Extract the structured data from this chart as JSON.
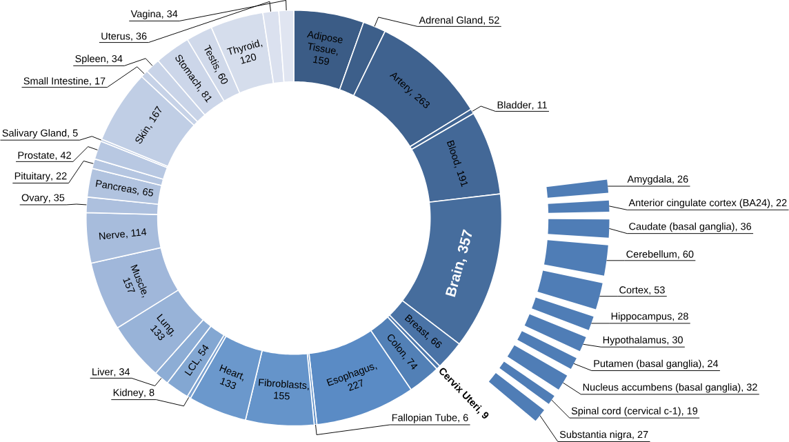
{
  "chart_data": [
    {
      "type": "donut",
      "data_labels": true,
      "categories": [
        "Adipose Tissue",
        "Adrenal Gland",
        "Artery",
        "Bladder",
        "Blood",
        "Brain",
        "Breast",
        "Cervix Uteri",
        "Colon",
        "Esophagus",
        "Fallopian Tube",
        "Fibroblasts",
        "Heart",
        "Kidney",
        "LCL",
        "Liver",
        "Lung",
        "Muscle",
        "Nerve",
        "Ovary",
        "Pancreas",
        "Pituitary",
        "Prostate",
        "Salivary Gland",
        "Skin",
        "Small Intestine",
        "Spleen",
        "Stomach",
        "Testis",
        "Thyroid",
        "Uterus",
        "Vagina"
      ],
      "values": [
        159,
        52,
        263,
        11,
        191,
        357,
        66,
        9,
        74,
        227,
        6,
        155,
        133,
        8,
        54,
        34,
        133,
        157,
        114,
        35,
        65,
        22,
        42,
        5,
        167,
        17,
        34,
        81,
        60,
        120,
        36,
        34
      ],
      "value_labels": [
        ", 159",
        ", 52",
        ", 263",
        ", 11",
        ", 191",
        ", 357",
        ", 66",
        ", 9",
        ", 74",
        ", 227",
        ", 6",
        ", 155",
        ", 133",
        ", 8",
        ", 54",
        ", 34",
        ", 133",
        ", 157",
        ", 114",
        ", 35",
        ", 65",
        ", 22",
        ", 42",
        ", 5",
        ", 167",
        ", 17",
        ", 34",
        ", 81",
        ", 60",
        ", 120",
        ", 36",
        ", 34"
      ],
      "colors": [
        "#3b5c86",
        "#3d5f8a",
        "#3f628f",
        "#416593",
        "#436897",
        "#466d9d",
        "#4a73a6",
        "#4e79ae",
        "#5280b6",
        "#5a8bc5",
        "#6190c8",
        "#6594ca",
        "#6b98cc",
        "#7aa1d0",
        "#83a7d2",
        "#8dadd5",
        "#98b3d8",
        "#a0b7da",
        "#a7bcdc",
        "#adc0de",
        "#b1c3df",
        "#b5c6e1",
        "#b8c8e2",
        "#bbcae3",
        "#c0cee5",
        "#c6d2e7",
        "#c9d4e8",
        "#ccd6e9",
        "#d0d9ea",
        "#d5ddec",
        "#dbe1ef",
        "#e0e5f1"
      ]
    },
    {
      "type": "other",
      "data_labels": true,
      "color": "#4f7db6",
      "categories": [
        "Amygdala",
        "Anterior cingulate cortex (BA24)",
        "Caudate (basal ganglia)",
        "Cerebellum",
        "Cortex",
        "Hippocampus",
        "Hypothalamus",
        "Putamen (basal ganglia)",
        "Nucleus accumbens (basal ganglia)",
        "Spinal cord (cervical c-1)",
        "Substantia nigra"
      ],
      "values": [
        26,
        22,
        36,
        60,
        53,
        28,
        30,
        24,
        32,
        19,
        27
      ],
      "value_labels": [
        ", 26",
        ", 22",
        ", 36",
        ", 60",
        ", 53",
        ", 28",
        ", 30",
        ", 24",
        ", 32",
        ", 19",
        ", 27"
      ]
    }
  ]
}
